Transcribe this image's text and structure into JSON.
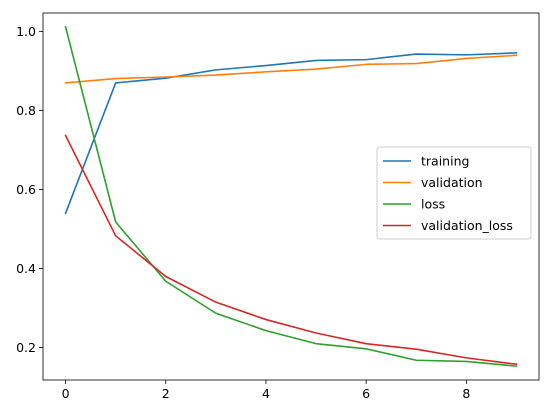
{
  "chart_data": {
    "type": "line",
    "title": "",
    "xlabel": "",
    "ylabel": "",
    "x": [
      0,
      1,
      2,
      3,
      4,
      5,
      6,
      7,
      8,
      9
    ],
    "xlim": [
      -0.45,
      9.45
    ],
    "ylim": [
      0.118,
      1.047
    ],
    "xticks": [
      0,
      2,
      4,
      6,
      8
    ],
    "yticks": [
      0.2,
      0.4,
      0.6,
      0.8,
      1.0
    ],
    "xtick_labels": [
      "0",
      "2",
      "4",
      "6",
      "8"
    ],
    "ytick_labels": [
      "0.2",
      "0.4",
      "0.6",
      "0.8",
      "1.0"
    ],
    "grid": false,
    "legend_position": "center-right",
    "series": [
      {
        "name": "training",
        "color": "#1f77b4",
        "values": [
          0.54,
          0.87,
          0.882,
          0.903,
          0.914,
          0.927,
          0.929,
          0.943,
          0.941,
          0.946
        ]
      },
      {
        "name": "validation",
        "color": "#ff7f0e",
        "values": [
          0.87,
          0.881,
          0.885,
          0.89,
          0.898,
          0.905,
          0.917,
          0.919,
          0.932,
          0.94
        ]
      },
      {
        "name": "loss",
        "color": "#2ca02c",
        "values": [
          1.012,
          0.518,
          0.368,
          0.287,
          0.243,
          0.21,
          0.197,
          0.168,
          0.165,
          0.153
        ]
      },
      {
        "name": "validation_loss",
        "color": "#d62728",
        "values": [
          0.737,
          0.483,
          0.38,
          0.315,
          0.271,
          0.237,
          0.21,
          0.196,
          0.174,
          0.158
        ]
      }
    ]
  }
}
